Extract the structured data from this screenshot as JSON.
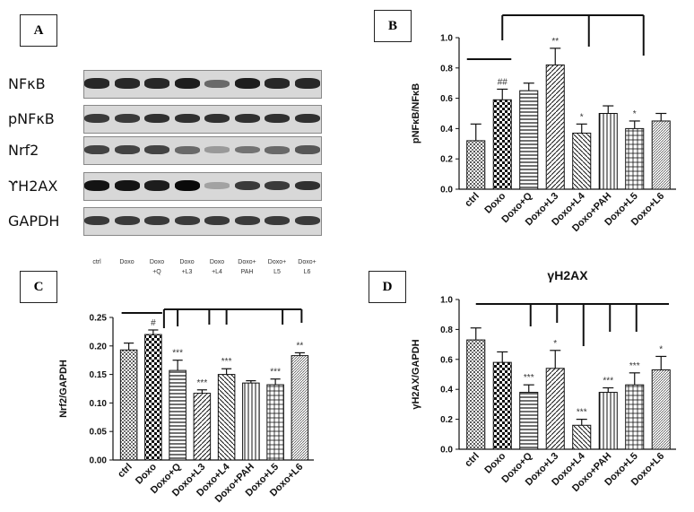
{
  "panels": {
    "A": {
      "label": "A",
      "blots": [
        {
          "name": "NFκB",
          "intensity": [
            0.85,
            0.85,
            0.85,
            0.9,
            0.5,
            0.9,
            0.85,
            0.85
          ]
        },
        {
          "name": "pNFκB",
          "intensity": [
            0.75,
            0.75,
            0.8,
            0.8,
            0.8,
            0.8,
            0.8,
            0.8
          ]
        },
        {
          "name": "Nrf2",
          "intensity": [
            0.7,
            0.7,
            0.7,
            0.5,
            0.25,
            0.45,
            0.5,
            0.6
          ]
        },
        {
          "name": "ϒH2AX",
          "intensity": [
            0.95,
            0.95,
            0.9,
            1.0,
            0.2,
            0.75,
            0.75,
            0.8
          ]
        },
        {
          "name": "GAPDH",
          "intensity": [
            0.75,
            0.75,
            0.75,
            0.75,
            0.75,
            0.75,
            0.75,
            0.75
          ]
        }
      ],
      "lanes": [
        "ctrl",
        "Doxo",
        "Doxo\n+Q",
        "Doxo\n+L3",
        "Doxo\n+L4",
        "Doxo+\nPAH",
        "Doxo+\nL5",
        "Doxo+\nL6"
      ]
    },
    "B": {
      "label": "B"
    },
    "C": {
      "label": "C"
    },
    "D": {
      "label": "D"
    }
  },
  "chart_data": [
    {
      "panel": "B",
      "type": "bar",
      "title": "",
      "ylabel": "pNFκB/NFκB",
      "xlabel": "",
      "ylim": [
        0,
        1.0
      ],
      "yticks": [
        "0.0",
        "0.2",
        "0.4",
        "0.6",
        "0.8",
        "1.0"
      ],
      "categories": [
        "ctrl",
        "Doxo",
        "Doxo+Q",
        "Doxo+L3",
        "Doxo+L4",
        "Doxo+PAH",
        "Doxo+L5",
        "Doxo+L6"
      ],
      "values": [
        0.32,
        0.59,
        0.65,
        0.82,
        0.37,
        0.5,
        0.4,
        0.45
      ],
      "errors": [
        0.11,
        0.07,
        0.05,
        0.11,
        0.06,
        0.05,
        0.05,
        0.05
      ],
      "annotations": [
        "",
        "##",
        "",
        "**",
        "*",
        "",
        "*",
        ""
      ],
      "grid": false
    },
    {
      "panel": "C",
      "type": "bar",
      "title": "",
      "ylabel": "Nrf2/GAPDH",
      "xlabel": "",
      "ylim": [
        0,
        0.25
      ],
      "yticks": [
        "0.00",
        "0.05",
        "0.10",
        "0.15",
        "0.20",
        "0.25"
      ],
      "categories": [
        "ctrl",
        "Doxo",
        "Doxo+Q",
        "Doxo+L3",
        "Doxo+L4",
        "Doxo+PAH",
        "Doxo+L5",
        "Doxo+L6"
      ],
      "values": [
        0.193,
        0.22,
        0.157,
        0.117,
        0.15,
        0.135,
        0.132,
        0.183
      ],
      "errors": [
        0.012,
        0.008,
        0.018,
        0.006,
        0.01,
        0.004,
        0.01,
        0.005
      ],
      "annotations": [
        "",
        "#",
        "***",
        "***",
        "***",
        "",
        "***",
        "**"
      ],
      "grid": false
    },
    {
      "panel": "D",
      "type": "bar",
      "title": "γH2AX",
      "ylabel": "γH2AX/GAPDH",
      "xlabel": "",
      "ylim": [
        0,
        1.0
      ],
      "yticks": [
        "0.0",
        "0.2",
        "0.4",
        "0.6",
        "0.8",
        "1.0"
      ],
      "categories": [
        "ctrl",
        "Doxo",
        "Doxo+Q",
        "Doxo+L3",
        "Doxo+L4",
        "Doxo+PAH",
        "Doxo+L5",
        "Doxo+L6"
      ],
      "values": [
        0.73,
        0.58,
        0.38,
        0.54,
        0.16,
        0.38,
        0.43,
        0.53
      ],
      "errors": [
        0.08,
        0.07,
        0.05,
        0.12,
        0.04,
        0.03,
        0.08,
        0.09
      ],
      "annotations": [
        "",
        "",
        "***",
        "*",
        "***",
        "***",
        "***",
        "*"
      ],
      "grid": false
    }
  ]
}
